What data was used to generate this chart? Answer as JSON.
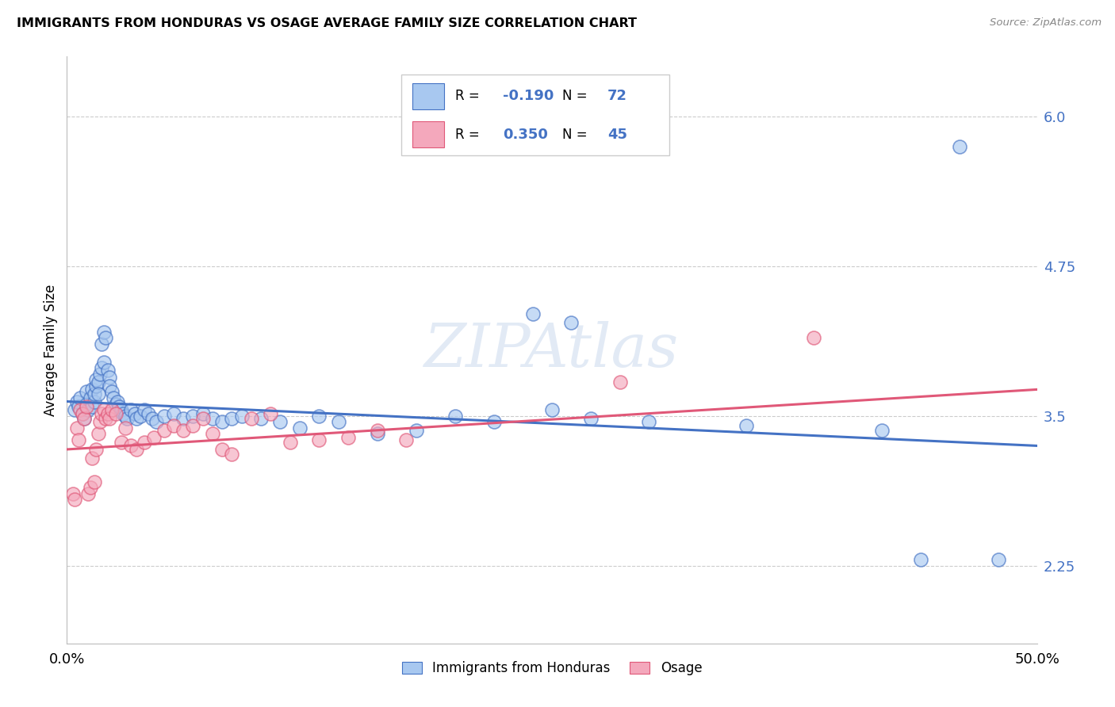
{
  "title": "IMMIGRANTS FROM HONDURAS VS OSAGE AVERAGE FAMILY SIZE CORRELATION CHART",
  "source": "Source: ZipAtlas.com",
  "ylabel": "Average Family Size",
  "legend_label_1": "Immigrants from Honduras",
  "legend_label_2": "Osage",
  "R1": -0.19,
  "N1": 72,
  "R2": 0.35,
  "N2": 45,
  "xlim": [
    0.0,
    0.5
  ],
  "ylim": [
    1.6,
    6.5
  ],
  "yticks": [
    2.25,
    3.5,
    4.75,
    6.0
  ],
  "xticks": [
    0.0,
    0.1,
    0.2,
    0.3,
    0.4,
    0.5
  ],
  "xtick_labels": [
    "0.0%",
    "",
    "",
    "",
    "",
    "50.0%"
  ],
  "color_blue": "#a8c8f0",
  "color_pink": "#f4a8bc",
  "color_blue_line": "#4472c4",
  "color_pink_line": "#e05878",
  "background": "#ffffff",
  "watermark": "ZIPAtlas",
  "blue_trend": [
    3.62,
    3.25
  ],
  "pink_trend": [
    3.22,
    3.72
  ],
  "blue_x": [
    0.004,
    0.005,
    0.006,
    0.007,
    0.008,
    0.009,
    0.01,
    0.01,
    0.011,
    0.012,
    0.013,
    0.013,
    0.014,
    0.014,
    0.015,
    0.015,
    0.016,
    0.016,
    0.017,
    0.018,
    0.018,
    0.019,
    0.019,
    0.02,
    0.021,
    0.022,
    0.022,
    0.023,
    0.024,
    0.025,
    0.026,
    0.027,
    0.028,
    0.029,
    0.03,
    0.031,
    0.033,
    0.035,
    0.036,
    0.038,
    0.04,
    0.042,
    0.044,
    0.046,
    0.05,
    0.055,
    0.06,
    0.065,
    0.07,
    0.075,
    0.08,
    0.085,
    0.09,
    0.1,
    0.11,
    0.12,
    0.13,
    0.14,
    0.16,
    0.18,
    0.2,
    0.22,
    0.24,
    0.25,
    0.26,
    0.27,
    0.3,
    0.35,
    0.42,
    0.44,
    0.46,
    0.48
  ],
  "blue_y": [
    3.55,
    3.62,
    3.58,
    3.65,
    3.52,
    3.48,
    3.6,
    3.7,
    3.55,
    3.65,
    3.58,
    3.72,
    3.62,
    3.68,
    3.75,
    3.8,
    3.78,
    3.68,
    3.85,
    3.9,
    4.1,
    4.2,
    3.95,
    4.15,
    3.88,
    3.82,
    3.75,
    3.7,
    3.65,
    3.6,
    3.62,
    3.58,
    3.55,
    3.52,
    3.5,
    3.48,
    3.55,
    3.52,
    3.48,
    3.5,
    3.55,
    3.52,
    3.48,
    3.45,
    3.5,
    3.52,
    3.48,
    3.5,
    3.52,
    3.48,
    3.45,
    3.48,
    3.5,
    3.48,
    3.45,
    3.4,
    3.5,
    3.45,
    3.35,
    3.38,
    3.5,
    3.45,
    4.35,
    3.55,
    4.28,
    3.48,
    3.45,
    3.42,
    3.38,
    2.3,
    5.75,
    2.3
  ],
  "pink_x": [
    0.003,
    0.004,
    0.005,
    0.006,
    0.007,
    0.008,
    0.009,
    0.01,
    0.011,
    0.012,
    0.013,
    0.014,
    0.015,
    0.016,
    0.017,
    0.018,
    0.019,
    0.02,
    0.021,
    0.022,
    0.023,
    0.025,
    0.028,
    0.03,
    0.033,
    0.036,
    0.04,
    0.045,
    0.05,
    0.055,
    0.06,
    0.065,
    0.07,
    0.075,
    0.08,
    0.085,
    0.095,
    0.105,
    0.115,
    0.13,
    0.145,
    0.16,
    0.175,
    0.285,
    0.385
  ],
  "pink_y": [
    2.85,
    2.8,
    3.4,
    3.3,
    3.55,
    3.52,
    3.48,
    3.58,
    2.85,
    2.9,
    3.15,
    2.95,
    3.22,
    3.35,
    3.45,
    3.52,
    3.55,
    3.48,
    3.52,
    3.48,
    3.55,
    3.52,
    3.28,
    3.4,
    3.25,
    3.22,
    3.28,
    3.32,
    3.38,
    3.42,
    3.38,
    3.42,
    3.48,
    3.35,
    3.22,
    3.18,
    3.48,
    3.52,
    3.28,
    3.3,
    3.32,
    3.38,
    3.3,
    3.78,
    4.15
  ]
}
